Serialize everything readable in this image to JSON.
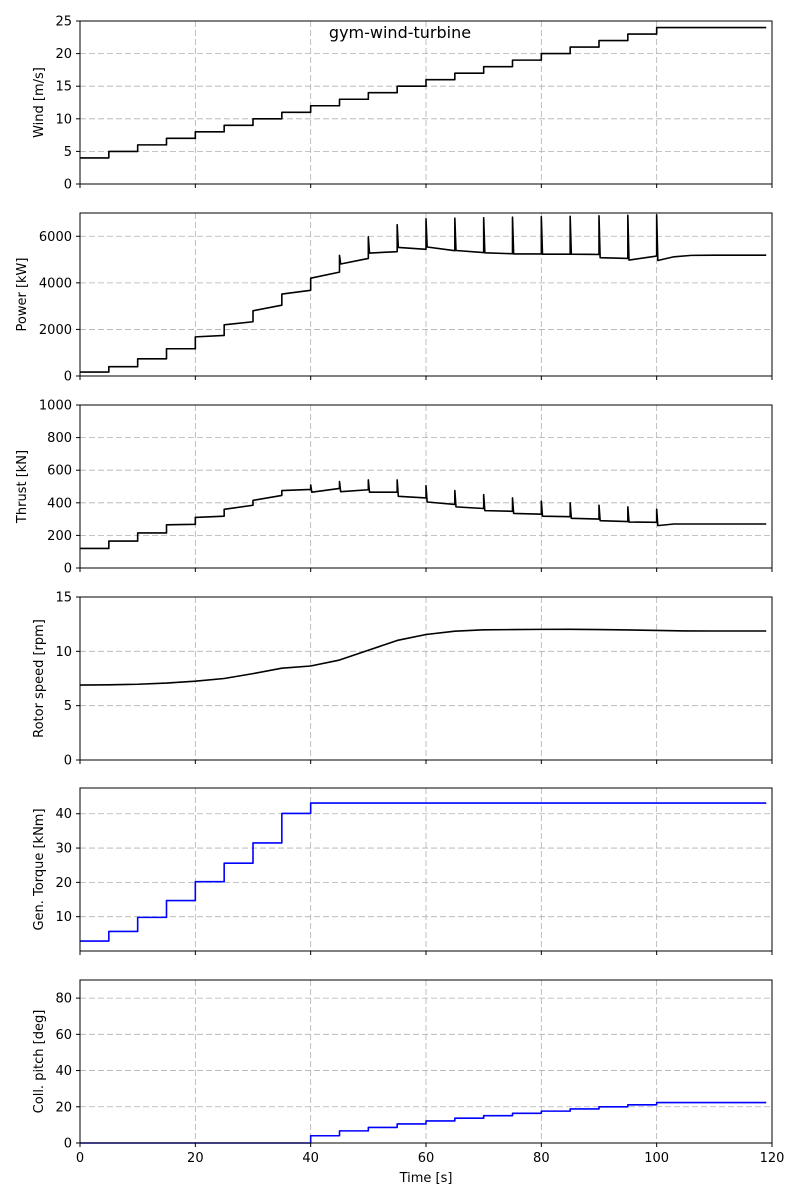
{
  "figure": {
    "title": "gym-wind-turbine",
    "xlabel": "Time [s]"
  },
  "chart_data": {
    "type": "line",
    "title": "gym-wind-turbine",
    "xlim": [
      0,
      120
    ],
    "xticks": [
      0,
      20,
      40,
      60,
      80,
      100,
      120
    ],
    "grid": true,
    "panels": [
      {
        "id": "wind",
        "ylabel": "Wind [m/s]",
        "ylim": [
          0,
          25
        ],
        "yticks": [
          0,
          5,
          10,
          15,
          20,
          25
        ],
        "color": "#000000",
        "series": [
          {
            "x": [
              0,
              5,
              5,
              10,
              10,
              15,
              15,
              20,
              20,
              25,
              25,
              30,
              30,
              35,
              35,
              40,
              40,
              45,
              45,
              50,
              50,
              55,
              55,
              60,
              60,
              65,
              65,
              70,
              70,
              75,
              75,
              80,
              80,
              85,
              85,
              90,
              90,
              95,
              95,
              100,
              100,
              119
            ],
            "y": [
              4,
              4,
              5,
              5,
              6,
              6,
              7,
              7,
              8,
              8,
              9,
              9,
              10,
              10,
              11,
              11,
              12,
              12,
              13,
              13,
              14,
              14,
              15,
              15,
              16,
              16,
              17,
              17,
              18,
              18,
              19,
              19,
              20,
              20,
              21,
              21,
              22,
              22,
              23,
              23,
              24,
              24
            ]
          }
        ]
      },
      {
        "id": "power",
        "ylabel": "Power [kW]",
        "ylim": [
          0,
          7000
        ],
        "yticks": [
          0,
          2000,
          4000,
          6000
        ],
        "color": "#000000",
        "series": [
          {
            "x": [
              0,
              5,
              5,
              10,
              10,
              15,
              15,
              20,
              20,
              25,
              25,
              30,
              30,
              35,
              35,
              40,
              40,
              45,
              45,
              45.2,
              50,
              50,
              50.2,
              55,
              55,
              55.2,
              60,
              60,
              60.2,
              65,
              65,
              65.2,
              70,
              70,
              70.2,
              75,
              75,
              75.2,
              80,
              80,
              80.2,
              85,
              85,
              85.2,
              90,
              90,
              90.2,
              95,
              95,
              95.2,
              100,
              100,
              100.2,
              103,
              106,
              110,
              119
            ],
            "y": [
              170,
              170,
              400,
              400,
              740,
              740,
              1170,
              1170,
              1680,
              1740,
              2200,
              2330,
              2800,
              3040,
              3520,
              3680,
              4200,
              4460,
              5180,
              4810,
              5050,
              5980,
              5280,
              5340,
              6500,
              5520,
              5440,
              6750,
              5540,
              5380,
              6780,
              5390,
              5300,
              6800,
              5290,
              5250,
              6820,
              5240,
              5240,
              6840,
              5230,
              5230,
              6860,
              5230,
              5220,
              6880,
              5080,
              5050,
              6900,
              4980,
              5150,
              6920,
              4960,
              5120,
              5180,
              5190,
              5190
            ]
          }
        ]
      },
      {
        "id": "thrust",
        "ylabel": "Thrust [kN]",
        "ylim": [
          0,
          1000
        ],
        "yticks": [
          0,
          200,
          400,
          600,
          800,
          1000
        ],
        "color": "#000000",
        "series": [
          {
            "x": [
              0,
              5,
              5,
              10,
              10,
              15,
              15,
              20,
              20,
              25,
              25,
              30,
              30,
              35,
              35,
              40,
              40,
              40.2,
              45,
              45,
              45.2,
              50,
              50,
              50.2,
              55,
              55,
              55.2,
              60,
              60,
              60.2,
              65,
              65,
              65.2,
              70,
              70,
              70.2,
              75,
              75,
              75.2,
              80,
              80,
              80.2,
              85,
              85,
              85.2,
              90,
              90,
              90.2,
              95,
              95,
              95.2,
              100,
              100,
              100.2,
              103,
              110,
              119
            ],
            "y": [
              120,
              120,
              165,
              165,
              215,
              215,
              265,
              268,
              310,
              318,
              360,
              385,
              415,
              445,
              475,
              482,
              510,
              465,
              488,
              530,
              468,
              480,
              540,
              465,
              465,
              540,
              440,
              430,
              505,
              405,
              390,
              475,
              375,
              365,
              450,
              352,
              348,
              430,
              335,
              330,
              410,
              318,
              315,
              400,
              305,
              300,
              385,
              290,
              285,
              375,
              282,
              280,
              360,
              260,
              270,
              270,
              270
            ]
          }
        ]
      },
      {
        "id": "rotor",
        "ylabel": "Rotor speed [rpm]",
        "ylim": [
          0,
          15
        ],
        "yticks": [
          0,
          5,
          10,
          15
        ],
        "color": "#000000",
        "series": [
          {
            "x": [
              0,
              5,
              10,
              15,
              20,
              25,
              30,
              35,
              40,
              45,
              50,
              55,
              60,
              65,
              70,
              75,
              80,
              85,
              90,
              95,
              100,
              105,
              110,
              119
            ],
            "y": [
              6.9,
              6.92,
              6.97,
              7.08,
              7.25,
              7.5,
              7.95,
              8.45,
              8.65,
              9.2,
              10.1,
              11.0,
              11.55,
              11.85,
              11.98,
              12.0,
              12.02,
              12.03,
              12.0,
              11.97,
              11.92,
              11.88,
              11.87,
              11.87
            ]
          }
        ]
      },
      {
        "id": "torque",
        "ylabel": "Gen. Torque [kNm]",
        "ylim": [
          0,
          47.5
        ],
        "yticks": [
          10,
          20,
          30,
          40
        ],
        "color": "#0000ff",
        "series": [
          {
            "x": [
              0,
              5,
              5,
              10,
              10,
              15,
              15,
              20,
              20,
              25,
              25,
              30,
              30,
              35,
              35,
              40,
              40,
              119
            ],
            "y": [
              2.9,
              2.9,
              5.7,
              5.7,
              9.8,
              9.8,
              14.7,
              14.7,
              20.2,
              20.2,
              25.6,
              25.6,
              31.5,
              31.5,
              40.1,
              40.1,
              43.1,
              43.1
            ]
          }
        ]
      },
      {
        "id": "pitch",
        "ylabel": "Coll. pitch [deg]",
        "ylim": [
          0,
          90
        ],
        "yticks": [
          0,
          20,
          40,
          60,
          80
        ],
        "color": "#0000ff",
        "series": [
          {
            "x": [
              0,
              40,
              40,
              45,
              45,
              50,
              50,
              55,
              55,
              60,
              60,
              65,
              65,
              70,
              70,
              75,
              75,
              80,
              80,
              85,
              85,
              90,
              90,
              95,
              95,
              100,
              100,
              119
            ],
            "y": [
              0,
              0,
              4,
              4,
              6.7,
              6.7,
              8.6,
              8.6,
              10.5,
              10.5,
              12.2,
              12.2,
              13.7,
              13.7,
              15.1,
              15.1,
              16.4,
              16.4,
              17.6,
              17.6,
              18.8,
              18.8,
              20,
              20,
              21.1,
              21.1,
              22.3,
              22.3
            ]
          }
        ]
      }
    ]
  }
}
